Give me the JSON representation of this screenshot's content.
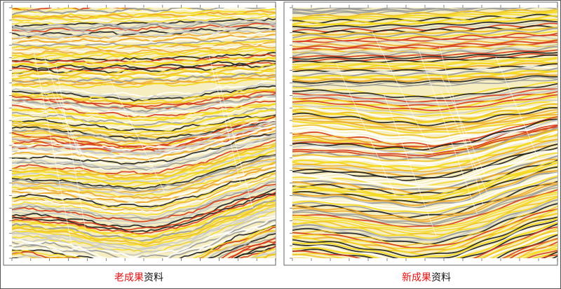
{
  "panels": [
    {
      "caption_highlight": "老成果",
      "caption_rest": "资料"
    },
    {
      "caption_highlight": "新成果",
      "caption_rest": "资料"
    }
  ]
}
